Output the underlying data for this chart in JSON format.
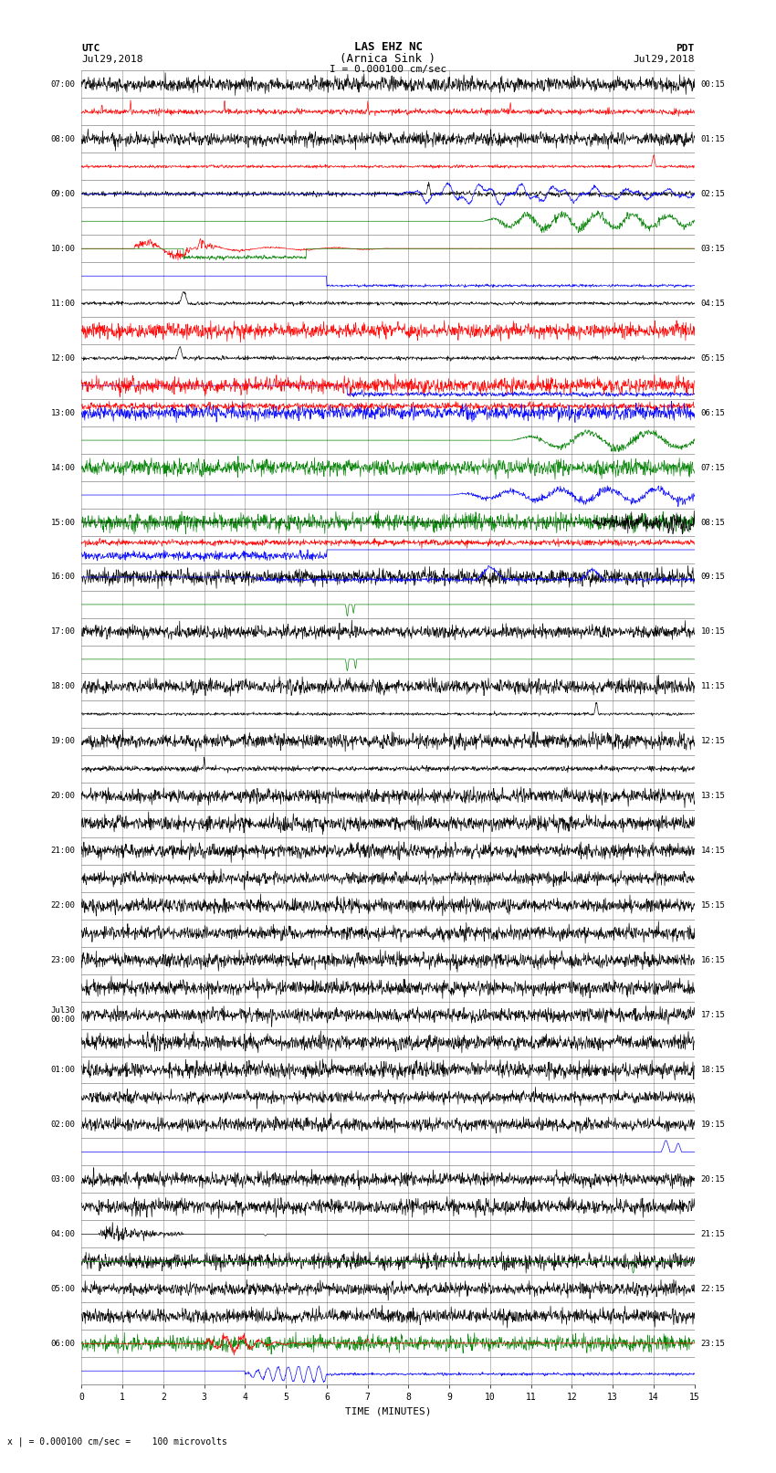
{
  "title_line1": "LAS EHZ NC",
  "title_line2": "(Arnica Sink )",
  "scale_label": "I = 0.000100 cm/sec",
  "left_label_top": "UTC",
  "left_label_date": "Jul29,2018",
  "right_label_top": "PDT",
  "right_label_date": "Jul29,2018",
  "bottom_label": "TIME (MINUTES)",
  "bottom_note": "x | = 0.000100 cm/sec =    100 microvolts",
  "utc_times": [
    "07:00",
    "",
    "08:00",
    "",
    "09:00",
    "",
    "10:00",
    "",
    "11:00",
    "",
    "12:00",
    "",
    "13:00",
    "",
    "14:00",
    "",
    "15:00",
    "",
    "16:00",
    "",
    "17:00",
    "",
    "18:00",
    "",
    "19:00",
    "",
    "20:00",
    "",
    "21:00",
    "",
    "22:00",
    "",
    "23:00",
    "",
    "Jul30\n00:00",
    "",
    "01:00",
    "",
    "02:00",
    "",
    "03:00",
    "",
    "04:00",
    "",
    "05:00",
    "",
    "06:00",
    ""
  ],
  "pdt_times": [
    "00:15",
    "",
    "01:15",
    "",
    "02:15",
    "",
    "03:15",
    "",
    "04:15",
    "",
    "05:15",
    "",
    "06:15",
    "",
    "07:15",
    "",
    "08:15",
    "",
    "09:15",
    "",
    "10:15",
    "",
    "11:15",
    "",
    "12:15",
    "",
    "13:15",
    "",
    "14:15",
    "",
    "15:15",
    "",
    "16:15",
    "",
    "17:15",
    "",
    "18:15",
    "",
    "19:15",
    "",
    "20:15",
    "",
    "21:15",
    "",
    "22:15",
    "",
    "23:15",
    ""
  ],
  "n_rows": 48,
  "x_min": 0,
  "x_max": 15,
  "bg_color": "#ffffff",
  "grid_color": "#888888",
  "fig_width": 8.5,
  "fig_height": 16.13
}
